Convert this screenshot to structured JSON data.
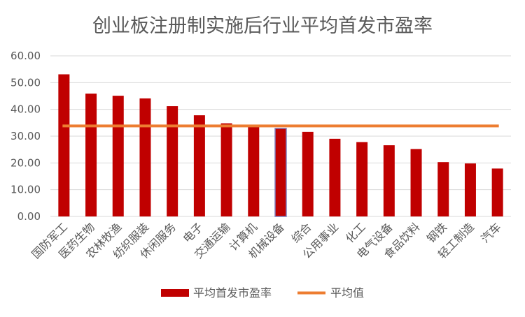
{
  "chart_data": {
    "type": "bar",
    "title": "创业板注册制实施后行业平均首发市盈率",
    "categories": [
      "国防军工",
      "医药生物",
      "农林牧渔",
      "纺织服装",
      "休闲服务",
      "电子",
      "交通运输",
      "计算机",
      "机械设备",
      "综合",
      "公用事业",
      "化工",
      "电气设备",
      "食品饮料",
      "钢铁",
      "轻工制造",
      "汽车"
    ],
    "series": [
      {
        "name": "平均首发市盈率",
        "type": "bar",
        "color": "#c00000",
        "values": [
          53.1,
          45.9,
          45.1,
          44.1,
          41.2,
          37.8,
          34.8,
          33.6,
          32.9,
          31.6,
          29.0,
          27.8,
          26.6,
          25.2,
          20.3,
          19.8,
          17.9
        ]
      },
      {
        "name": "平均值",
        "type": "line",
        "color": "#ed7d31",
        "value": 33.8
      }
    ],
    "highlight_category": "机械设备",
    "highlight_color": "#7f7fbf",
    "ylim": [
      0,
      60
    ],
    "yticks": [
      "0.00",
      "10.00",
      "20.00",
      "30.00",
      "40.00",
      "50.00",
      "60.00"
    ],
    "grid": true,
    "legend_position": "bottom"
  }
}
